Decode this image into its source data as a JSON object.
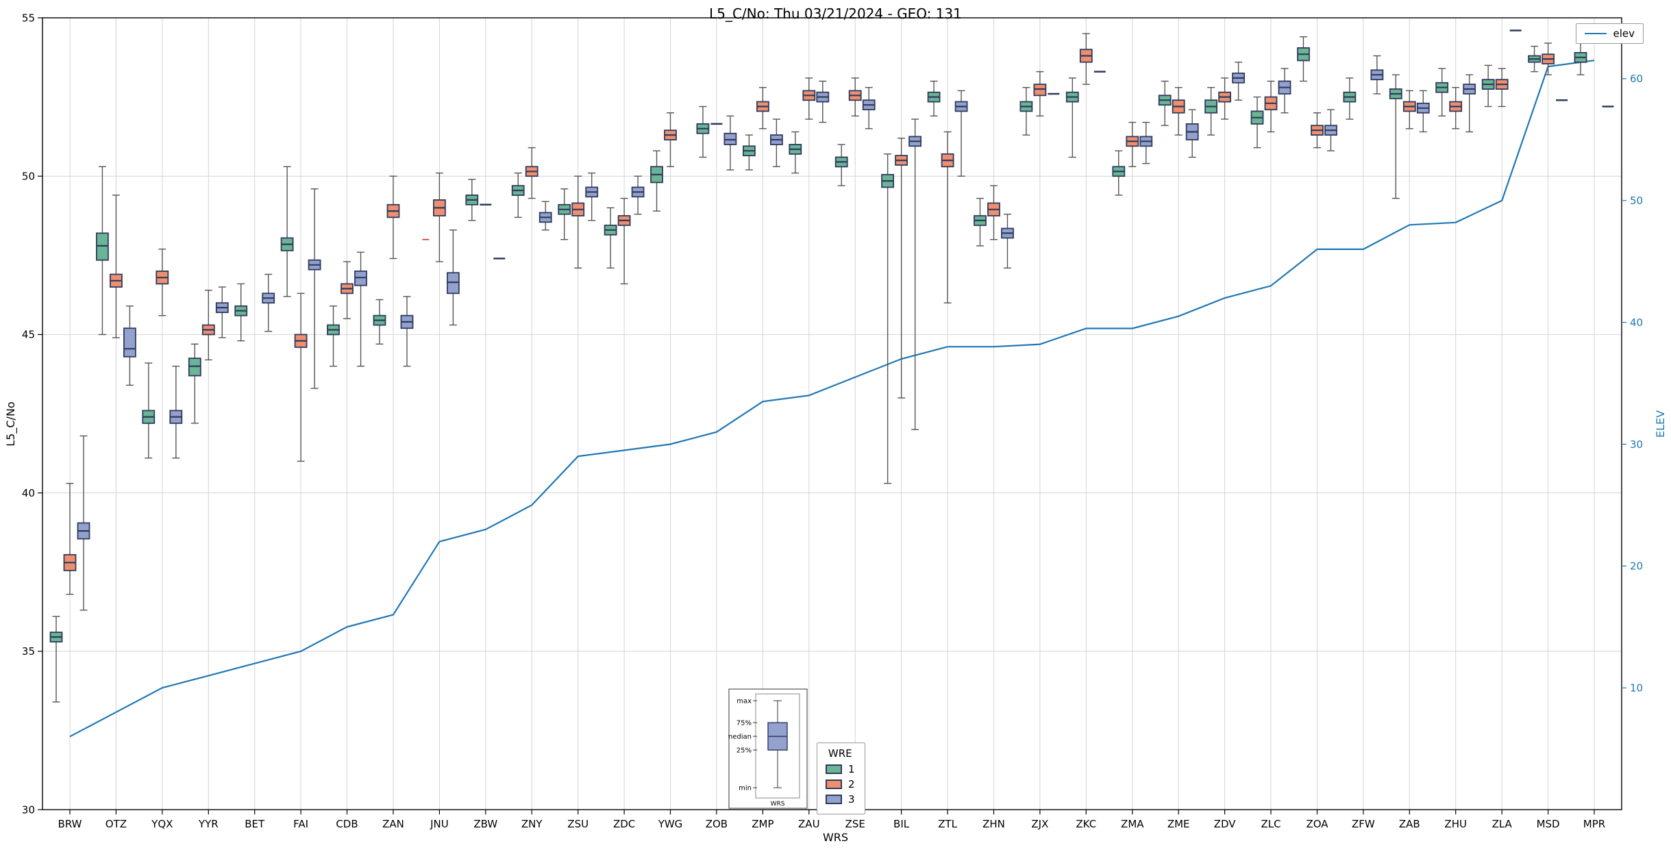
{
  "chart_data": {
    "type": "boxplot+line",
    "title": "L5_C/No: Thu 03/21/2024 - GEO: 131",
    "xlabel": "WRS",
    "ylabel_left": "L5_C/No",
    "ylabel_right": "ELEV",
    "ylim_left": [
      30,
      55
    ],
    "yticks_left": [
      30,
      35,
      40,
      45,
      50,
      55
    ],
    "ylim_right": [
      0,
      65
    ],
    "yticks_right": [
      10,
      20,
      30,
      40,
      50,
      60
    ],
    "grid": true,
    "legend_line": {
      "label": "elev",
      "color": "#1f77b4"
    },
    "legend_wre": {
      "title": "WRE",
      "entries": [
        {
          "label": "1",
          "color": "#69b595"
        },
        {
          "label": "2",
          "color": "#ee9070"
        },
        {
          "label": "3",
          "color": "#92a1ce"
        }
      ]
    },
    "inset_key": {
      "labels": [
        "max",
        "75%",
        "median",
        "25%",
        "min"
      ],
      "xlabel": "WRS"
    },
    "colors": {
      "wre": [
        "#69b595",
        "#ee9070",
        "#92a1ce"
      ],
      "box_edge": "#2f3a5c",
      "median": "#2f3a5c",
      "whisker": "#555555",
      "elev_line": "#1f77b4",
      "grid": "#d4d4d4",
      "flier": "#d62728",
      "right_axis": "#1f77b4",
      "axis_border": "#000000"
    },
    "box_format": [
      "min",
      "q1",
      "median",
      "q3",
      "max"
    ],
    "stations": [
      "BRW",
      "OTZ",
      "YQX",
      "YYR",
      "BET",
      "FAI",
      "CDB",
      "ZAN",
      "JNU",
      "ZBW",
      "ZNY",
      "ZSU",
      "ZDC",
      "YWG",
      "ZOB",
      "ZMP",
      "ZAU",
      "ZSE",
      "BIL",
      "ZTL",
      "ZHN",
      "ZJX",
      "ZKC",
      "ZMA",
      "ZME",
      "ZDV",
      "ZLC",
      "ZOA",
      "ZFW",
      "ZAB",
      "ZHU",
      "ZLA",
      "MSD",
      "MPR"
    ],
    "elev": [
      6,
      8,
      10,
      11,
      12,
      13,
      15,
      16,
      22,
      23,
      25,
      29,
      29.5,
      30,
      31,
      33.5,
      34,
      35.5,
      37,
      38,
      38,
      38.2,
      39.5,
      39.5,
      40.5,
      42,
      43,
      46,
      46,
      48,
      48.2,
      50,
      61,
      61.5
    ],
    "boxes": [
      [
        [
          33.4,
          35.3,
          35.45,
          35.6,
          36.1
        ],
        [
          36.8,
          37.55,
          37.8,
          38.05,
          40.3
        ],
        [
          36.3,
          38.55,
          38.8,
          39.05,
          41.8
        ]
      ],
      [
        [
          45.0,
          47.35,
          47.8,
          48.2,
          50.3
        ],
        [
          44.9,
          46.5,
          46.7,
          46.9,
          49.4
        ],
        [
          43.4,
          44.3,
          44.55,
          45.2,
          45.9
        ]
      ],
      [
        [
          41.1,
          42.2,
          42.4,
          42.6,
          44.1
        ],
        [
          45.6,
          46.6,
          46.8,
          47.0,
          47.7
        ],
        [
          41.1,
          42.2,
          42.4,
          42.6,
          44.0
        ]
      ],
      [
        [
          42.2,
          43.7,
          44.0,
          44.25,
          44.7
        ],
        [
          44.2,
          45.0,
          45.15,
          45.3,
          46.4
        ],
        [
          44.9,
          45.7,
          45.85,
          46.0,
          46.5
        ]
      ],
      [
        [
          44.8,
          45.6,
          45.75,
          45.9,
          46.6
        ],
        null,
        [
          45.1,
          46.0,
          46.15,
          46.3,
          46.9
        ]
      ],
      [
        [
          46.2,
          47.65,
          47.85,
          48.05,
          50.3
        ],
        [
          41.0,
          44.6,
          44.8,
          45.0,
          46.3
        ],
        [
          43.3,
          47.05,
          47.2,
          47.35,
          49.6
        ]
      ],
      [
        [
          44.0,
          45.0,
          45.15,
          45.3,
          45.9
        ],
        [
          45.5,
          46.3,
          46.45,
          46.6,
          47.3
        ],
        [
          44.0,
          46.55,
          46.8,
          47.0,
          47.6
        ]
      ],
      [
        [
          44.7,
          45.3,
          45.45,
          45.6,
          46.1
        ],
        [
          47.4,
          48.7,
          48.9,
          49.1,
          50.0
        ],
        [
          44.0,
          45.2,
          45.4,
          45.6,
          46.2
        ]
      ],
      [
        null,
        [
          47.3,
          48.75,
          49.0,
          49.25,
          50.1
        ],
        [
          45.3,
          46.3,
          46.65,
          46.95,
          48.3
        ]
      ],
      [
        [
          48.6,
          49.1,
          49.25,
          49.4,
          49.9
        ],
        [
          49.1,
          49.1,
          49.1,
          49.1,
          49.1
        ],
        [
          47.4,
          47.4,
          47.4,
          47.4,
          47.4
        ]
      ],
      [
        [
          48.7,
          49.4,
          49.55,
          49.7,
          50.1
        ],
        [
          49.3,
          50.0,
          50.15,
          50.3,
          50.9
        ],
        [
          48.3,
          48.55,
          48.7,
          48.85,
          49.2
        ]
      ],
      [
        [
          48.0,
          48.8,
          48.95,
          49.1,
          49.6
        ],
        [
          47.1,
          48.75,
          48.95,
          49.15,
          50.0
        ],
        [
          48.6,
          49.35,
          49.5,
          49.65,
          50.1
        ]
      ],
      [
        [
          47.1,
          48.15,
          48.3,
          48.45,
          49.0
        ],
        [
          46.6,
          48.45,
          48.6,
          48.75,
          49.3
        ],
        [
          48.8,
          49.35,
          49.5,
          49.65,
          50.0
        ]
      ],
      [
        [
          48.9,
          49.8,
          50.05,
          50.3,
          50.8
        ],
        [
          50.3,
          51.15,
          51.3,
          51.45,
          52.0
        ],
        null
      ],
      [
        [
          50.6,
          51.35,
          51.5,
          51.65,
          52.2
        ],
        [
          51.65,
          51.65,
          51.65,
          51.65,
          51.65
        ],
        [
          50.2,
          51.0,
          51.15,
          51.35,
          51.9
        ]
      ],
      [
        [
          50.2,
          50.65,
          50.8,
          50.95,
          51.3
        ],
        [
          51.5,
          52.05,
          52.2,
          52.35,
          52.8
        ],
        [
          50.3,
          51.0,
          51.15,
          51.3,
          51.8
        ]
      ],
      [
        [
          50.1,
          50.7,
          50.85,
          51.0,
          51.4
        ],
        [
          51.8,
          52.4,
          52.55,
          52.7,
          53.1
        ],
        [
          51.7,
          52.35,
          52.5,
          52.65,
          53.0
        ]
      ],
      [
        [
          49.7,
          50.3,
          50.45,
          50.6,
          51.0
        ],
        [
          51.9,
          52.4,
          52.55,
          52.7,
          53.1
        ],
        [
          51.5,
          52.1,
          52.25,
          52.4,
          52.8
        ]
      ],
      [
        [
          40.3,
          49.65,
          49.85,
          50.05,
          50.7
        ],
        [
          43.0,
          50.35,
          50.5,
          50.65,
          51.2
        ],
        [
          42.0,
          50.95,
          51.1,
          51.25,
          51.8
        ]
      ],
      [
        [
          51.9,
          52.35,
          52.5,
          52.65,
          53.0
        ],
        [
          46.0,
          50.3,
          50.5,
          50.7,
          51.4
        ],
        [
          50.0,
          52.05,
          52.2,
          52.35,
          52.7
        ]
      ],
      [
        [
          47.8,
          48.45,
          48.6,
          48.75,
          49.3
        ],
        [
          48.0,
          48.75,
          48.95,
          49.15,
          49.7
        ],
        [
          47.1,
          48.05,
          48.2,
          48.35,
          48.8
        ]
      ],
      [
        [
          51.3,
          52.05,
          52.2,
          52.35,
          52.8
        ],
        [
          51.9,
          52.55,
          52.75,
          52.9,
          53.3
        ],
        [
          52.6,
          52.6,
          52.6,
          52.6,
          52.6
        ]
      ],
      [
        [
          50.6,
          52.35,
          52.5,
          52.65,
          53.1
        ],
        [
          52.9,
          53.6,
          53.8,
          54.0,
          54.5
        ],
        [
          53.3,
          53.3,
          53.3,
          53.3,
          53.3
        ]
      ],
      [
        [
          49.4,
          50.0,
          50.15,
          50.3,
          50.8
        ],
        [
          50.3,
          50.95,
          51.1,
          51.25,
          51.7
        ],
        [
          50.4,
          50.95,
          51.1,
          51.25,
          51.7
        ]
      ],
      [
        [
          51.6,
          52.25,
          52.4,
          52.55,
          53.0
        ],
        [
          51.3,
          52.0,
          52.2,
          52.4,
          52.8
        ],
        [
          50.6,
          51.15,
          51.4,
          51.65,
          52.1
        ]
      ],
      [
        [
          51.3,
          52.0,
          52.2,
          52.4,
          52.8
        ],
        [
          51.8,
          52.35,
          52.5,
          52.65,
          53.1
        ],
        [
          52.4,
          52.95,
          53.1,
          53.25,
          53.6
        ]
      ],
      [
        [
          50.9,
          51.65,
          51.85,
          52.05,
          52.5
        ],
        [
          51.4,
          52.1,
          52.3,
          52.5,
          53.0
        ],
        [
          52.0,
          52.6,
          52.8,
          53.0,
          53.4
        ]
      ],
      [
        [
          53.0,
          53.65,
          53.85,
          54.05,
          54.4
        ],
        [
          50.9,
          51.3,
          51.45,
          51.6,
          52.0
        ],
        [
          50.8,
          51.3,
          51.45,
          51.6,
          52.1
        ]
      ],
      [
        [
          51.8,
          52.35,
          52.5,
          52.65,
          53.1
        ],
        null,
        [
          52.6,
          53.05,
          53.2,
          53.35,
          53.8
        ]
      ],
      [
        [
          49.3,
          52.45,
          52.6,
          52.75,
          53.2
        ],
        [
          51.5,
          52.05,
          52.2,
          52.35,
          52.7
        ],
        [
          51.4,
          52.0,
          52.15,
          52.3,
          52.7
        ]
      ],
      [
        [
          51.9,
          52.65,
          52.8,
          52.95,
          53.4
        ],
        [
          51.5,
          52.05,
          52.2,
          52.35,
          52.8
        ],
        [
          51.4,
          52.6,
          52.75,
          52.9,
          53.2
        ]
      ],
      [
        [
          52.2,
          52.75,
          52.9,
          53.05,
          53.5
        ],
        [
          52.2,
          52.75,
          52.9,
          53.05,
          53.4
        ],
        [
          54.6,
          54.6,
          54.6,
          54.6,
          54.6
        ]
      ],
      [
        [
          53.3,
          53.6,
          53.7,
          53.8,
          54.1
        ],
        [
          53.2,
          53.55,
          53.7,
          53.85,
          54.2
        ],
        [
          52.4,
          52.4,
          52.4,
          52.4,
          52.4
        ]
      ],
      [
        [
          53.2,
          53.6,
          53.75,
          53.9,
          54.3
        ],
        null,
        [
          52.2,
          52.2,
          52.2,
          52.2,
          52.2
        ]
      ]
    ],
    "fliers": [
      {
        "station": "JNU",
        "slot": 0,
        "value": 48.0
      }
    ]
  }
}
